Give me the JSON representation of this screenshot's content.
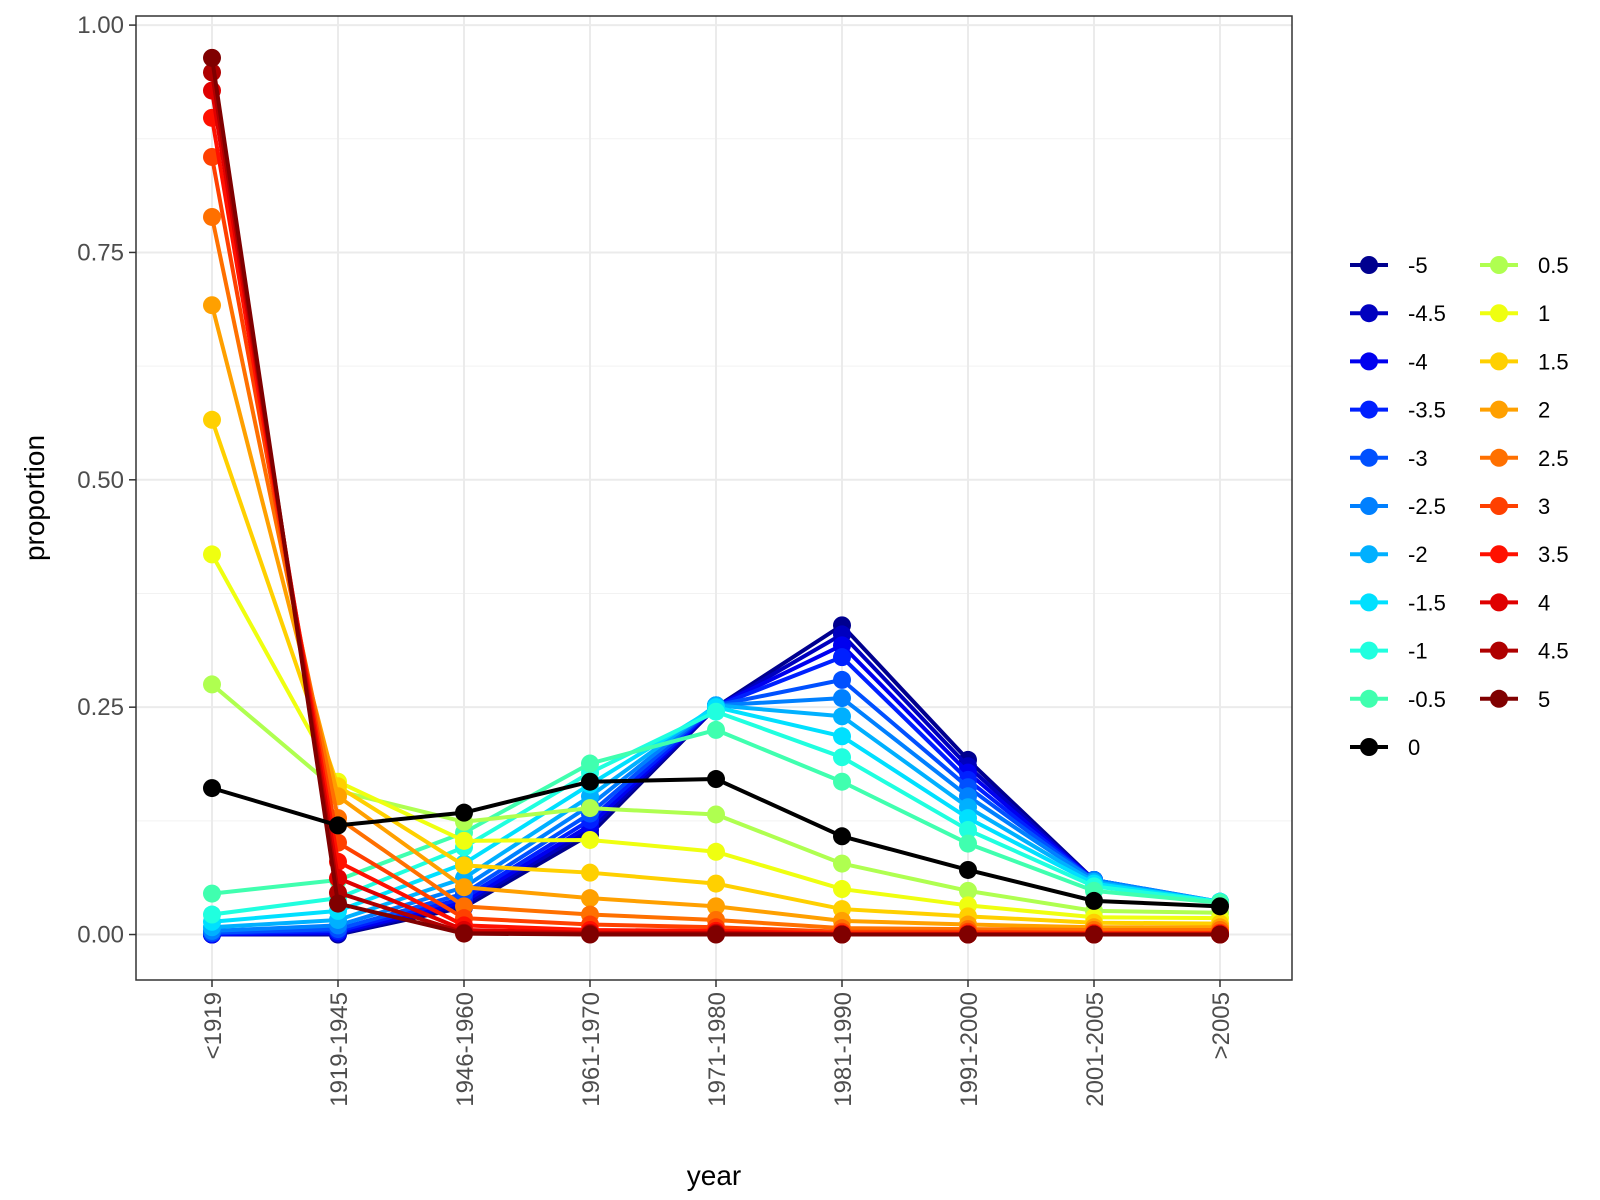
{
  "chart_data": {
    "type": "line",
    "xlabel": "year",
    "ylabel": "proportion",
    "categories": [
      "<1919",
      "1919-1945",
      "1946-1960",
      "1961-1970",
      "1971-1980",
      "1981-1990",
      "1991-2000",
      "2001-2005",
      ">2005"
    ],
    "y_ticks": [
      "0.00",
      "0.25",
      "0.50",
      "0.75",
      "1.00"
    ],
    "ylim": [
      -0.05,
      1.01
    ],
    "grid": true,
    "legend_position": "right",
    "series": [
      {
        "name": "-5",
        "color": "#00008F",
        "values": [
          0.0,
          0.0,
          0.03,
          0.11,
          0.25,
          0.34,
          0.192,
          0.06,
          0.035
        ]
      },
      {
        "name": "-4.5",
        "color": "#0000BF",
        "values": [
          0.0,
          0.001,
          0.033,
          0.115,
          0.25,
          0.33,
          0.185,
          0.06,
          0.035
        ]
      },
      {
        "name": "-4",
        "color": "#0000EF",
        "values": [
          0.0,
          0.002,
          0.036,
          0.12,
          0.251,
          0.318,
          0.178,
          0.06,
          0.035
        ]
      },
      {
        "name": "-3.5",
        "color": "#0020FF",
        "values": [
          0.001,
          0.004,
          0.04,
          0.126,
          0.251,
          0.305,
          0.17,
          0.06,
          0.035
        ]
      },
      {
        "name": "-3",
        "color": "#0050FF",
        "values": [
          0.002,
          0.006,
          0.045,
          0.133,
          0.252,
          0.28,
          0.162,
          0.06,
          0.036
        ]
      },
      {
        "name": "-2.5",
        "color": "#0080FF",
        "values": [
          0.004,
          0.01,
          0.052,
          0.142,
          0.252,
          0.26,
          0.152,
          0.06,
          0.036
        ]
      },
      {
        "name": "-2",
        "color": "#00B0FF",
        "values": [
          0.008,
          0.016,
          0.062,
          0.152,
          0.252,
          0.24,
          0.14,
          0.058,
          0.036
        ]
      },
      {
        "name": "-1.5",
        "color": "#00E0FF",
        "values": [
          0.014,
          0.026,
          0.078,
          0.165,
          0.25,
          0.218,
          0.128,
          0.056,
          0.036
        ]
      },
      {
        "name": "-1",
        "color": "#20FFDF",
        "values": [
          0.022,
          0.04,
          0.096,
          0.178,
          0.245,
          0.195,
          0.115,
          0.053,
          0.036
        ]
      },
      {
        "name": "-0.5",
        "color": "#40FFAF",
        "values": [
          0.045,
          0.06,
          0.112,
          0.188,
          0.225,
          0.168,
          0.1,
          0.048,
          0.035
        ]
      },
      {
        "name": "0",
        "color": "#000000",
        "values": [
          0.161,
          0.12,
          0.134,
          0.168,
          0.171,
          0.108,
          0.071,
          0.037,
          0.031
        ]
      },
      {
        "name": "0.5",
        "color": "#AFFF50",
        "values": [
          0.275,
          0.158,
          0.124,
          0.139,
          0.132,
          0.078,
          0.048,
          0.026,
          0.024
        ]
      },
      {
        "name": "1",
        "color": "#EFFF10",
        "values": [
          0.418,
          0.168,
          0.103,
          0.104,
          0.091,
          0.05,
          0.032,
          0.019,
          0.018
        ]
      },
      {
        "name": "1.5",
        "color": "#FFD000",
        "values": [
          0.566,
          0.163,
          0.076,
          0.068,
          0.056,
          0.028,
          0.02,
          0.013,
          0.012
        ]
      },
      {
        "name": "2",
        "color": "#FFA000",
        "values": [
          0.692,
          0.152,
          0.052,
          0.04,
          0.031,
          0.015,
          0.011,
          0.008,
          0.008
        ]
      },
      {
        "name": "2.5",
        "color": "#FF7000",
        "values": [
          0.789,
          0.128,
          0.031,
          0.022,
          0.016,
          0.007,
          0.006,
          0.005,
          0.005
        ]
      },
      {
        "name": "3",
        "color": "#FF4000",
        "values": [
          0.855,
          0.101,
          0.018,
          0.011,
          0.008,
          0.003,
          0.003,
          0.002,
          0.002
        ]
      },
      {
        "name": "3.5",
        "color": "#FF1000",
        "values": [
          0.898,
          0.08,
          0.01,
          0.005,
          0.004,
          0.001,
          0.001,
          0.001,
          0.001
        ]
      },
      {
        "name": "4",
        "color": "#DF0000",
        "values": [
          0.928,
          0.062,
          0.005,
          0.002,
          0.002,
          0.0,
          0.0,
          0.0,
          0.0
        ]
      },
      {
        "name": "4.5",
        "color": "#AF0000",
        "values": [
          0.948,
          0.046,
          0.002,
          0.001,
          0.001,
          0.0,
          0.0,
          0.0,
          0.0
        ]
      },
      {
        "name": "5",
        "color": "#800000",
        "values": [
          0.964,
          0.034,
          0.001,
          0.0,
          0.0,
          0.0,
          0.0,
          0.0,
          0.0
        ]
      }
    ],
    "legend_order": [
      "-5",
      "-4.5",
      "-4",
      "-3.5",
      "-3",
      "-2.5",
      "-2",
      "-1.5",
      "-1",
      "-0.5",
      "0",
      "0.5",
      "1",
      "1.5",
      "2",
      "2.5",
      "3",
      "3.5",
      "4",
      "4.5",
      "5"
    ]
  }
}
